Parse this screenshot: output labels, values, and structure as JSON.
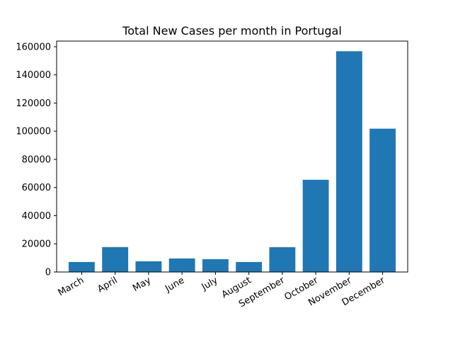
{
  "chart_data": {
    "type": "bar",
    "title": "Total New Cases per month in Portugal",
    "xlabel": "",
    "ylabel": "",
    "categories": [
      "March",
      "April",
      "May",
      "June",
      "July",
      "August",
      "September",
      "October",
      "November",
      "December"
    ],
    "values": [
      7100,
      17700,
      7600,
      9600,
      9100,
      7100,
      17600,
      65500,
      156800,
      101800
    ],
    "ylim": [
      0,
      164000
    ],
    "yticks": [
      0,
      20000,
      40000,
      60000,
      80000,
      100000,
      120000,
      140000,
      160000
    ],
    "bar_color": "#1f77b4",
    "grid": false,
    "legend": "none"
  }
}
